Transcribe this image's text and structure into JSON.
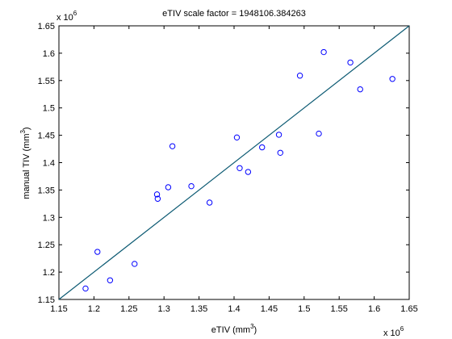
{
  "chart_data": {
    "type": "scatter",
    "title": "eTIV scale factor = 1948106.384263",
    "xlabel": {
      "main": "eTIV (mm",
      "sup": "3",
      "end": ")"
    },
    "ylabel": {
      "main": "manual TIV (mm",
      "sup": "3",
      "end": ")"
    },
    "x_multiplier": {
      "base": "x 10",
      "exp": "6"
    },
    "y_multiplier": {
      "base": "x 10",
      "exp": "6"
    },
    "xlim": [
      1.15,
      1.65
    ],
    "ylim": [
      1.15,
      1.65
    ],
    "xticks": [
      "1.15",
      "1.2",
      "1.25",
      "1.3",
      "1.35",
      "1.4",
      "1.45",
      "1.5",
      "1.55",
      "1.6",
      "1.65"
    ],
    "yticks": [
      "1.15",
      "1.2",
      "1.25",
      "1.3",
      "1.35",
      "1.4",
      "1.45",
      "1.5",
      "1.55",
      "1.6",
      "1.65"
    ],
    "grid": false,
    "series": [
      {
        "marker": "circle",
        "color": "#0000ff",
        "points": [
          [
            1.188,
            1.17
          ],
          [
            1.205,
            1.237
          ],
          [
            1.223,
            1.185
          ],
          [
            1.258,
            1.215
          ],
          [
            1.29,
            1.342
          ],
          [
            1.291,
            1.334
          ],
          [
            1.306,
            1.355
          ],
          [
            1.312,
            1.43
          ],
          [
            1.339,
            1.357
          ],
          [
            1.365,
            1.327
          ],
          [
            1.404,
            1.446
          ],
          [
            1.408,
            1.39
          ],
          [
            1.42,
            1.383
          ],
          [
            1.44,
            1.428
          ],
          [
            1.464,
            1.451
          ],
          [
            1.466,
            1.418
          ],
          [
            1.494,
            1.559
          ],
          [
            1.521,
            1.453
          ],
          [
            1.528,
            1.602
          ],
          [
            1.566,
            1.583
          ],
          [
            1.58,
            1.534
          ],
          [
            1.626,
            1.553
          ]
        ]
      },
      {
        "kind": "fit-line",
        "color": "#0c5a73",
        "points": [
          [
            1.15,
            1.15
          ],
          [
            1.65,
            1.65
          ]
        ]
      }
    ]
  }
}
